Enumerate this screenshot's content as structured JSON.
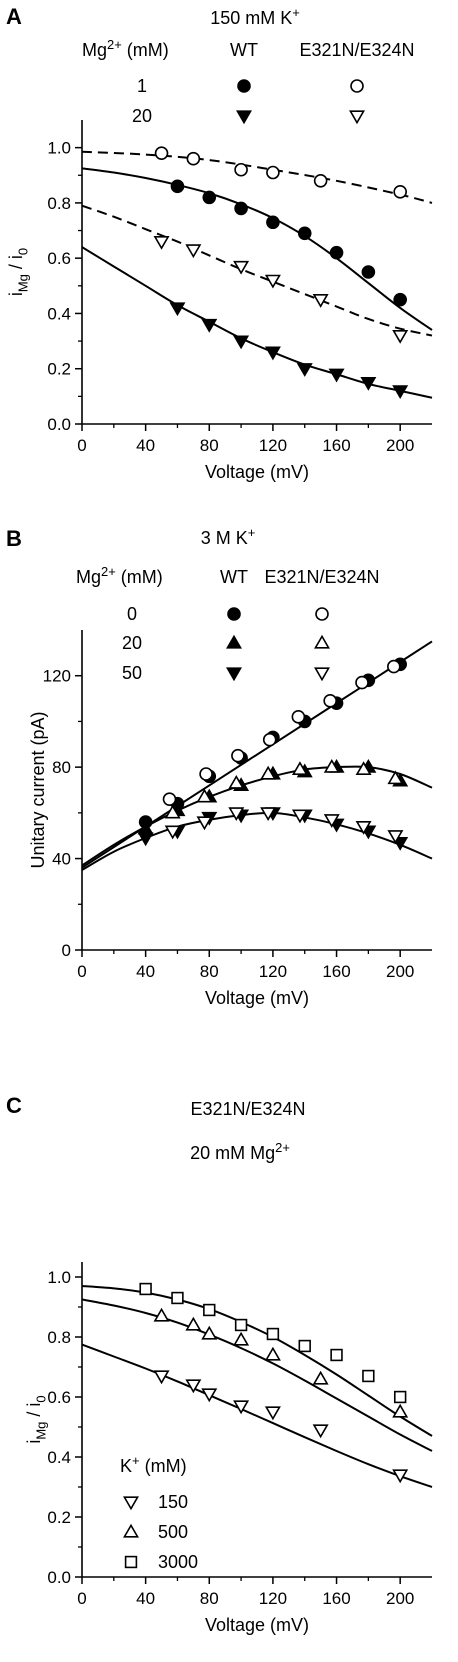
{
  "chart_data": [
    {
      "panel": "A",
      "type": "scatter",
      "title": "150 mM K+",
      "xlabel": "Voltage (mV)",
      "ylabel": "iMg / i0",
      "xlim": [
        0,
        220
      ],
      "ylim": [
        0.0,
        1.1
      ],
      "x_ticks": [
        "0",
        "40",
        "80",
        "120",
        "160",
        "200"
      ],
      "y_ticks": [
        "0.0",
        "0.2",
        "0.4",
        "0.6",
        "0.8",
        "1.0"
      ],
      "legend": {
        "condition_header": "Mg2+ (mM)",
        "columns": [
          "WT",
          "E321N/E324N"
        ],
        "rows": [
          "1",
          "20"
        ]
      },
      "series": [
        {
          "mg": "1",
          "genotype": "WT",
          "marker": "circle",
          "filled": true,
          "x": [
            60,
            80,
            100,
            120,
            140,
            160,
            180,
            200
          ],
          "y": [
            0.86,
            0.82,
            0.78,
            0.73,
            0.69,
            0.62,
            0.55,
            0.45
          ]
        },
        {
          "mg": "1",
          "genotype": "E321N/E324N",
          "marker": "circle",
          "filled": false,
          "x": [
            50,
            70,
            100,
            120,
            150,
            200
          ],
          "y": [
            0.98,
            0.96,
            0.92,
            0.91,
            0.88,
            0.84
          ]
        },
        {
          "mg": "20",
          "genotype": "WT",
          "marker": "triangle-down",
          "filled": true,
          "x": [
            60,
            80,
            100,
            120,
            140,
            160,
            180,
            200
          ],
          "y": [
            0.42,
            0.36,
            0.3,
            0.26,
            0.2,
            0.18,
            0.15,
            0.12
          ]
        },
        {
          "mg": "20",
          "genotype": "E321N/E324N",
          "marker": "triangle-down",
          "filled": false,
          "x": [
            50,
            70,
            100,
            120,
            150,
            200
          ],
          "y": [
            0.66,
            0.63,
            0.57,
            0.52,
            0.45,
            0.32
          ]
        }
      ],
      "fits": [
        {
          "style": "solid",
          "x": [
            0,
            20,
            40,
            60,
            80,
            100,
            120,
            140,
            160,
            180,
            200,
            220
          ],
          "y": [
            0.925,
            0.91,
            0.89,
            0.865,
            0.835,
            0.795,
            0.745,
            0.68,
            0.6,
            0.51,
            0.42,
            0.34
          ]
        },
        {
          "style": "dashed",
          "x": [
            0,
            40,
            80,
            120,
            160,
            200,
            220
          ],
          "y": [
            0.985,
            0.975,
            0.955,
            0.92,
            0.88,
            0.83,
            0.8
          ]
        },
        {
          "style": "dashed",
          "x": [
            0,
            20,
            40,
            60,
            80,
            100,
            120,
            140,
            160,
            180,
            200,
            220
          ],
          "y": [
            0.79,
            0.75,
            0.705,
            0.66,
            0.61,
            0.56,
            0.515,
            0.47,
            0.425,
            0.38,
            0.345,
            0.32
          ]
        },
        {
          "style": "solid",
          "x": [
            0,
            20,
            40,
            60,
            80,
            100,
            120,
            140,
            160,
            180,
            200,
            220
          ],
          "y": [
            0.64,
            0.57,
            0.5,
            0.43,
            0.37,
            0.31,
            0.26,
            0.215,
            0.18,
            0.145,
            0.12,
            0.095
          ]
        }
      ]
    },
    {
      "panel": "B",
      "type": "scatter",
      "title": "3 M K+",
      "xlabel": "Voltage (mV)",
      "ylabel": "Unitary current (pA)",
      "xlim": [
        0,
        220
      ],
      "ylim": [
        0,
        140
      ],
      "x_ticks": [
        "0",
        "40",
        "80",
        "120",
        "160",
        "200"
      ],
      "y_ticks": [
        "0",
        "40",
        "80",
        "120"
      ],
      "legend": {
        "condition_header": "Mg2+ (mM)",
        "columns": [
          "WT",
          "E321N/E324N"
        ],
        "rows": [
          "0",
          "20",
          "50"
        ]
      },
      "series": [
        {
          "mg": "0",
          "genotype": "WT",
          "marker": "circle",
          "filled": true,
          "x": [
            40,
            60,
            80,
            100,
            120,
            140,
            160,
            180,
            200
          ],
          "y": [
            56,
            64,
            76,
            84,
            93,
            100,
            108,
            118,
            125
          ]
        },
        {
          "mg": "0",
          "genotype": "E321N/E324N",
          "marker": "circle",
          "filled": false,
          "x": [
            55,
            78,
            98,
            118,
            136,
            156,
            176,
            196
          ],
          "y": [
            66,
            77,
            85,
            92,
            102,
            109,
            117,
            124
          ]
        },
        {
          "mg": "20",
          "genotype": "WT",
          "marker": "triangle-up",
          "filled": true,
          "x": [
            40,
            60,
            80,
            100,
            120,
            140,
            160,
            180,
            200
          ],
          "y": [
            53,
            61,
            67,
            72,
            77,
            78,
            80,
            80,
            74
          ]
        },
        {
          "mg": "20",
          "genotype": "E321N/E324N",
          "marker": "triangle-up",
          "filled": false,
          "x": [
            57,
            77,
            97,
            117,
            137,
            157,
            177,
            197
          ],
          "y": [
            60,
            67,
            73,
            77,
            79,
            80,
            79,
            75
          ]
        },
        {
          "mg": "50",
          "genotype": "WT",
          "marker": "triangle-down",
          "filled": true,
          "x": [
            40,
            60,
            80,
            100,
            120,
            140,
            160,
            180,
            200
          ],
          "y": [
            49,
            52,
            58,
            59,
            60,
            59,
            55,
            52,
            47
          ]
        },
        {
          "mg": "50",
          "genotype": "E321N/E324N",
          "marker": "triangle-down",
          "filled": false,
          "x": [
            57,
            77,
            97,
            117,
            137,
            157,
            177,
            197
          ],
          "y": [
            52,
            56,
            60,
            60,
            59,
            57,
            54,
            50
          ]
        }
      ],
      "fits": [
        {
          "style": "solid",
          "x": [
            0,
            40,
            80,
            120,
            160,
            200,
            220
          ],
          "y": [
            36,
            54,
            72,
            90,
            108,
            126,
            135
          ]
        },
        {
          "style": "solid",
          "x": [
            0,
            20,
            40,
            60,
            80,
            100,
            120,
            140,
            160,
            180,
            200,
            220
          ],
          "y": [
            37,
            46,
            54,
            61,
            67,
            72,
            76,
            79,
            80,
            80,
            77,
            71
          ]
        },
        {
          "style": "solid",
          "x": [
            0,
            20,
            40,
            60,
            80,
            100,
            120,
            140,
            160,
            180,
            200,
            220
          ],
          "y": [
            35,
            43,
            49,
            54,
            57,
            59,
            60,
            58,
            55,
            51,
            46,
            40
          ]
        }
      ]
    },
    {
      "panel": "C",
      "type": "scatter",
      "title": "E321N/E324N",
      "subtitle": "20 mM Mg2+",
      "xlabel": "Voltage (mV)",
      "ylabel": "iMg / i0",
      "xlim": [
        0,
        220
      ],
      "ylim": [
        0.0,
        1.05
      ],
      "x_ticks": [
        "0",
        "40",
        "80",
        "120",
        "160",
        "200"
      ],
      "y_ticks": [
        "0.0",
        "0.2",
        "0.4",
        "0.6",
        "0.8",
        "1.0"
      ],
      "legend": {
        "condition_header": "K+ (mM)",
        "rows": [
          "150",
          "500",
          "3000"
        ]
      },
      "series": [
        {
          "k": "150",
          "marker": "triangle-down",
          "filled": false,
          "x": [
            50,
            70,
            80,
            100,
            120,
            150,
            200
          ],
          "y": [
            0.67,
            0.64,
            0.61,
            0.57,
            0.55,
            0.49,
            0.34
          ]
        },
        {
          "k": "500",
          "marker": "triangle-up",
          "filled": false,
          "x": [
            50,
            70,
            80,
            100,
            120,
            150,
            200
          ],
          "y": [
            0.87,
            0.84,
            0.81,
            0.79,
            0.74,
            0.66,
            0.55
          ]
        },
        {
          "k": "3000",
          "marker": "square",
          "filled": false,
          "x": [
            40,
            60,
            80,
            100,
            120,
            140,
            160,
            180,
            200
          ],
          "y": [
            0.96,
            0.93,
            0.89,
            0.84,
            0.81,
            0.77,
            0.74,
            0.67,
            0.6
          ]
        }
      ],
      "fits": [
        {
          "style": "solid",
          "x": [
            0,
            20,
            40,
            60,
            80,
            100,
            120,
            140,
            160,
            180,
            200,
            220
          ],
          "y": [
            0.97,
            0.962,
            0.948,
            0.925,
            0.893,
            0.85,
            0.8,
            0.74,
            0.675,
            0.605,
            0.535,
            0.47
          ]
        },
        {
          "style": "solid",
          "x": [
            0,
            20,
            40,
            60,
            80,
            100,
            120,
            140,
            160,
            180,
            200,
            220
          ],
          "y": [
            0.925,
            0.905,
            0.88,
            0.848,
            0.808,
            0.763,
            0.712,
            0.655,
            0.595,
            0.535,
            0.475,
            0.42
          ]
        },
        {
          "style": "solid",
          "x": [
            0,
            20,
            40,
            60,
            80,
            100,
            120,
            140,
            160,
            180,
            200,
            220
          ],
          "y": [
            0.775,
            0.735,
            0.695,
            0.652,
            0.606,
            0.56,
            0.513,
            0.466,
            0.42,
            0.376,
            0.336,
            0.3
          ]
        }
      ]
    }
  ]
}
